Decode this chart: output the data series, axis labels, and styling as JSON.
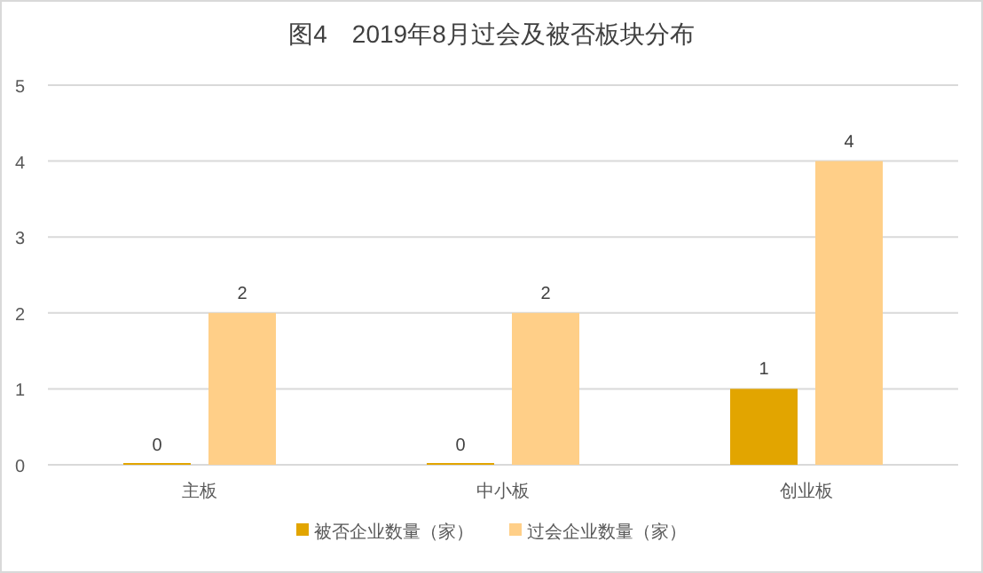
{
  "chart_data": {
    "type": "bar",
    "title": "图4　2019年8月过会及被否板块分布",
    "categories": [
      "主板",
      "中小板",
      "创业板"
    ],
    "series": [
      {
        "name": "被否企业数量（家）",
        "color": "#e2a500",
        "values": [
          0,
          0,
          1
        ]
      },
      {
        "name": "过会企业数量（家）",
        "color": "#ffcf88",
        "values": [
          2,
          2,
          4
        ]
      }
    ],
    "ylim": [
      0,
      5
    ],
    "yticks": [
      0,
      1,
      2,
      3,
      4,
      5
    ],
    "grid": "y",
    "legend": "bottom",
    "data_labels": true
  }
}
